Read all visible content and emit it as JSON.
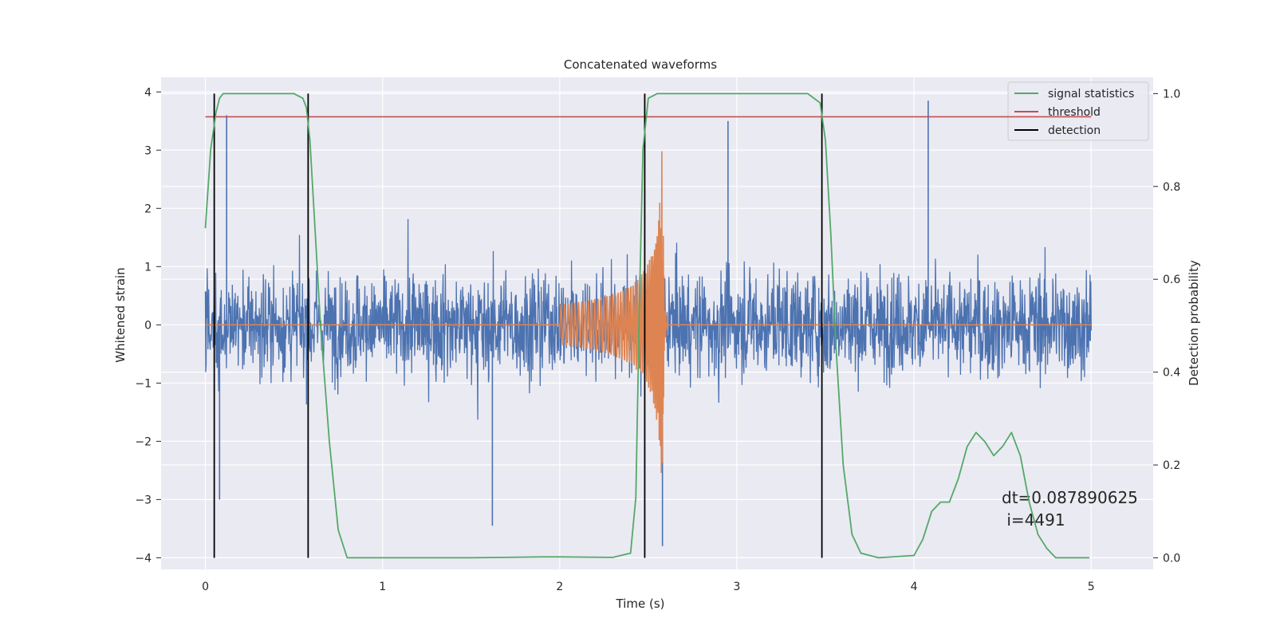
{
  "chart_data": {
    "type": "line",
    "title": "Concatenated waveforms",
    "xlabel": "Time (s)",
    "ylabel": "Whitened strain",
    "y2label": "Detection probability",
    "xlim": [
      -0.25,
      5.35
    ],
    "ylim": [
      -4.2,
      4.25
    ],
    "y2lim": [
      -0.025,
      1.035
    ],
    "x_ticks": [
      "0",
      "1",
      "2",
      "3",
      "4",
      "5"
    ],
    "y_ticks": [
      "−4",
      "−3",
      "−2",
      "−1",
      "0",
      "1",
      "2",
      "3",
      "4"
    ],
    "y2_ticks": [
      "0.0",
      "0.2",
      "0.4",
      "0.6",
      "0.8",
      "1.0"
    ],
    "grid": true,
    "legend_position": "top-right",
    "legend": [
      "signal statistics",
      "threshold",
      "detection"
    ],
    "series": [
      {
        "name": "signal statistics",
        "axis": "right",
        "color": "#55a868",
        "x": [
          0.0,
          0.03,
          0.06,
          0.08,
          0.1,
          0.15,
          0.3,
          0.5,
          0.55,
          0.57,
          0.59,
          0.62,
          0.65,
          0.7,
          0.75,
          0.8,
          1.0,
          1.5,
          1.9,
          2.0,
          2.3,
          2.4,
          2.43,
          2.45,
          2.47,
          2.5,
          2.55,
          2.6,
          3.0,
          3.4,
          3.47,
          3.5,
          3.53,
          3.56,
          3.6,
          3.65,
          3.7,
          3.8,
          4.0,
          4.05,
          4.1,
          4.15,
          4.2,
          4.25,
          4.3,
          4.35,
          4.4,
          4.45,
          4.5,
          4.55,
          4.6,
          4.65,
          4.7,
          4.75,
          4.8,
          4.9,
          4.99
        ],
        "y": [
          0.71,
          0.88,
          0.96,
          0.99,
          1.0,
          1.0,
          1.0,
          1.0,
          0.99,
          0.97,
          0.9,
          0.7,
          0.5,
          0.25,
          0.06,
          0.0,
          0.0,
          0.0,
          0.002,
          0.002,
          0.001,
          0.01,
          0.13,
          0.55,
          0.88,
          0.99,
          1.0,
          1.0,
          1.0,
          1.0,
          0.98,
          0.9,
          0.7,
          0.45,
          0.2,
          0.05,
          0.01,
          0.0,
          0.005,
          0.04,
          0.1,
          0.12,
          0.12,
          0.17,
          0.24,
          0.27,
          0.25,
          0.22,
          0.24,
          0.27,
          0.22,
          0.12,
          0.05,
          0.02,
          0.0,
          0.0,
          0.0
        ]
      },
      {
        "name": "threshold",
        "axis": "right",
        "color": "#c44e52",
        "x": [
          0.0,
          5.0
        ],
        "y": [
          0.95,
          0.95
        ]
      },
      {
        "name": "detection",
        "axis": "right",
        "color": "#000000",
        "x": [
          0.05,
          0.58,
          2.48,
          3.48
        ],
        "y_range": [
          0.0,
          1.0
        ]
      },
      {
        "axis": "left",
        "color": "#4c72b0",
        "kind": "whitened strain noise",
        "x_range": [
          0.0,
          5.0
        ],
        "spikes": [
          {
            "x": 0.12,
            "y": 3.6
          },
          {
            "x": 1.62,
            "y": -3.45
          },
          {
            "x": 2.58,
            "y": -3.8
          },
          {
            "x": 2.95,
            "y": 3.5
          },
          {
            "x": 4.08,
            "y": 3.85
          },
          {
            "x": 0.08,
            "y": -3.0
          }
        ]
      },
      {
        "axis": "left",
        "color": "#dd8452",
        "kind": "injected chirp",
        "x_range": [
          0.0,
          5.0
        ],
        "chirp_start": 2.0,
        "chirp_peak": 2.58,
        "peak_amplitude": 3.4
      }
    ],
    "annotation": [
      "dt=0.087890625",
      " i=4491"
    ]
  }
}
